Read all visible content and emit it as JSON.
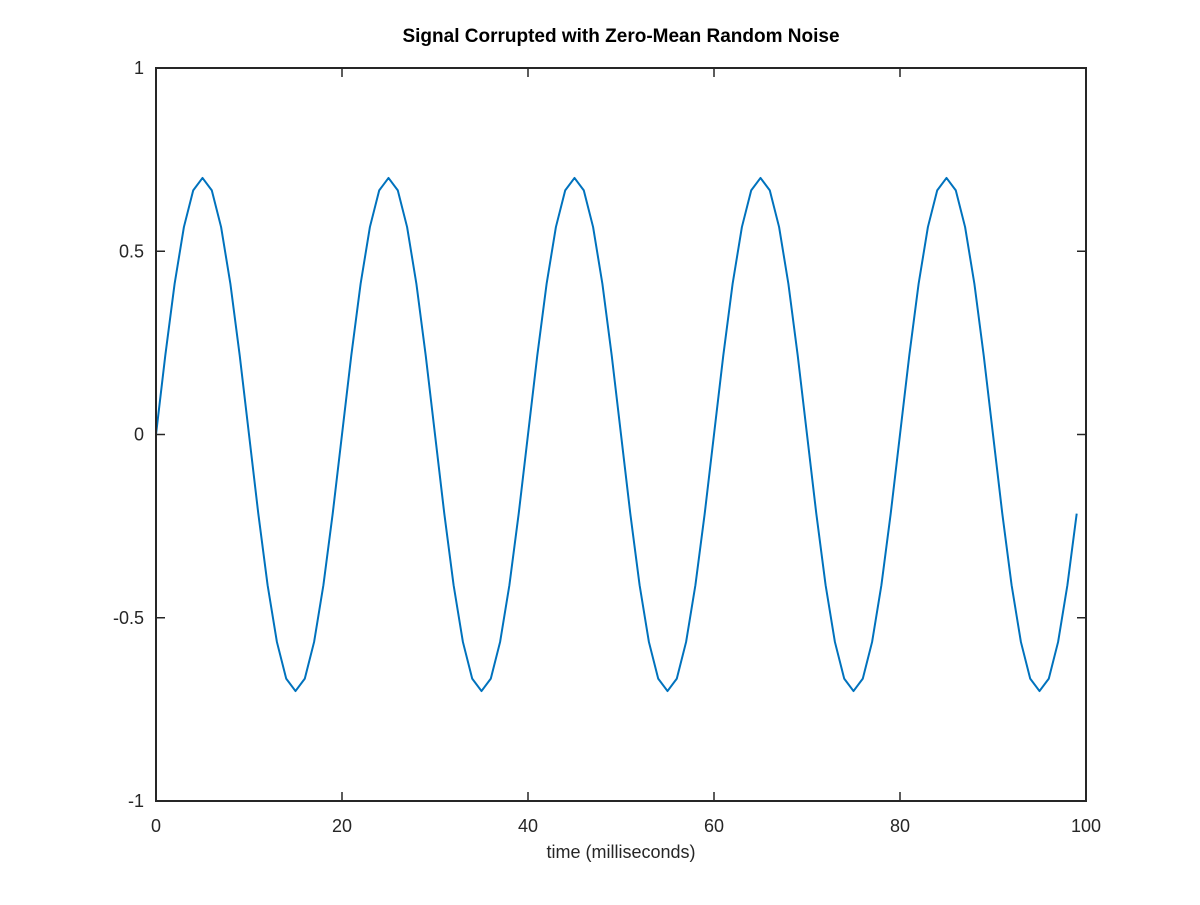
{
  "chart_data": {
    "type": "line",
    "title": "Signal Corrupted with Zero-Mean Random Noise",
    "xlabel": "time (milliseconds)",
    "ylabel": "",
    "xlim": [
      0,
      100
    ],
    "ylim": [
      -1,
      1
    ],
    "xticks": [
      0,
      20,
      40,
      60,
      80,
      100
    ],
    "xtick_labels": [
      "0",
      "20",
      "40",
      "60",
      "80",
      "100"
    ],
    "yticks": [
      -1,
      -0.5,
      0,
      0.5,
      1
    ],
    "ytick_labels": [
      "-1",
      "-0.5",
      "0",
      "0.5",
      "1"
    ],
    "grid": false,
    "box": true,
    "series": [
      {
        "color": "#0072bd",
        "x": [
          0,
          1,
          2,
          3,
          4,
          5,
          6,
          7,
          8,
          9,
          10,
          11,
          12,
          13,
          14,
          15,
          16,
          17,
          18,
          19,
          20,
          21,
          22,
          23,
          24,
          25,
          26,
          27,
          28,
          29,
          30,
          31,
          32,
          33,
          34,
          35,
          36,
          37,
          38,
          39,
          40,
          41,
          42,
          43,
          44,
          45,
          46,
          47,
          48,
          49,
          50,
          51,
          52,
          53,
          54,
          55,
          56,
          57,
          58,
          59,
          60,
          61,
          62,
          63,
          64,
          65,
          66,
          67,
          68,
          69,
          70,
          71,
          72,
          73,
          74,
          75,
          76,
          77,
          78,
          79,
          80,
          81,
          82,
          83,
          84,
          85,
          86,
          87,
          88,
          89,
          90,
          91,
          92,
          93,
          94,
          95,
          96,
          97,
          98,
          99
        ],
        "y": [
          0,
          0.216,
          0.411,
          0.566,
          0.666,
          0.7,
          0.666,
          0.566,
          0.411,
          0.216,
          0,
          -0.216,
          -0.411,
          -0.566,
          -0.666,
          -0.7,
          -0.666,
          -0.566,
          -0.411,
          -0.216,
          0,
          0.216,
          0.411,
          0.566,
          0.666,
          0.7,
          0.666,
          0.566,
          0.411,
          0.216,
          0,
          -0.216,
          -0.411,
          -0.566,
          -0.666,
          -0.7,
          -0.666,
          -0.566,
          -0.411,
          -0.216,
          0,
          0.216,
          0.411,
          0.566,
          0.666,
          0.7,
          0.666,
          0.566,
          0.411,
          0.216,
          0,
          -0.216,
          -0.411,
          -0.566,
          -0.666,
          -0.7,
          -0.666,
          -0.566,
          -0.411,
          -0.216,
          0,
          0.216,
          0.411,
          0.566,
          0.666,
          0.7,
          0.666,
          0.566,
          0.411,
          0.216,
          0,
          -0.216,
          -0.411,
          -0.566,
          -0.666,
          -0.7,
          -0.666,
          -0.566,
          -0.411,
          -0.216,
          0,
          0.216,
          0.411,
          0.566,
          0.666,
          0.7,
          0.666,
          0.566,
          0.411,
          0.216,
          0,
          -0.216,
          -0.411,
          -0.566,
          -0.666,
          -0.7,
          -0.666,
          -0.566,
          -0.411,
          -0.216
        ]
      }
    ]
  }
}
